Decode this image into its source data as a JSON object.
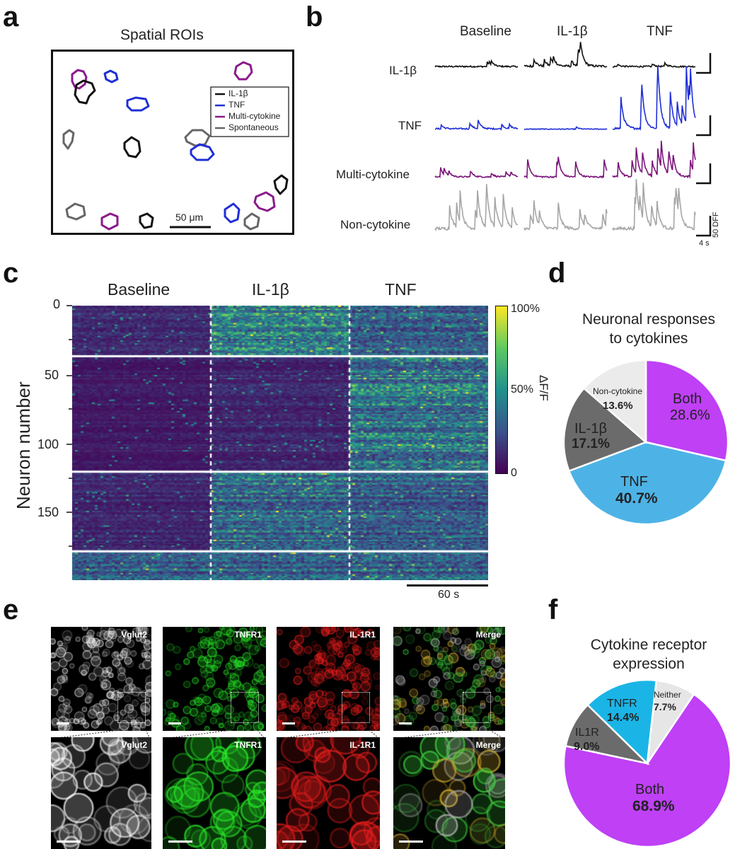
{
  "panels": {
    "a": "a",
    "b": "b",
    "c": "c",
    "d": "d",
    "e": "e",
    "f": "f"
  },
  "panel_a": {
    "title": "Spatial ROIs",
    "scalebar": "50 μm",
    "legend": [
      {
        "label": "IL-1β",
        "color": "#111111"
      },
      {
        "label": "TNF",
        "color": "#1f2fd6"
      },
      {
        "label": "Multi-cytokine",
        "color": "#8b1a8b"
      },
      {
        "label": "Spontaneous",
        "color": "#666666"
      }
    ]
  },
  "panel_b": {
    "col_headers": [
      "Baseline",
      "IL-1β",
      "TNF"
    ],
    "row_labels": [
      "IL-1β",
      "TNF",
      "Multi-cytokine",
      "Non-cytokine"
    ],
    "row_colors": [
      "#111111",
      "#1f2fd6",
      "#7a147a",
      "#a6a6a6"
    ],
    "scale_y": "50 DFF",
    "scale_x": "4 s"
  },
  "panel_c": {
    "col_headers": [
      "Baseline",
      "IL-1β",
      "TNF"
    ],
    "ylabel": "Neuron number",
    "yticks": [
      "0",
      "50",
      "100",
      "150"
    ],
    "colorbar_label": "ΔF/F",
    "colorbar_ticks": [
      "100%",
      "50%",
      "0"
    ],
    "scalebar": "60 s"
  },
  "panel_e": {
    "top_labels": [
      "Vglut2",
      "TNFR1",
      "IL-1R1",
      "Merge"
    ],
    "bottom_labels": [
      "Vglut2",
      "TNFR1",
      "IL-1R1",
      "Merge"
    ]
  },
  "chart_data": [
    {
      "type": "pie",
      "title": "Neuronal responses to cytokines",
      "slices": [
        {
          "label": "Both",
          "value": 28.6,
          "value_label": "28.6%",
          "color": "#bf40f5"
        },
        {
          "label": "TNF",
          "value": 40.7,
          "value_label": "40.7%",
          "color": "#4db3e6"
        },
        {
          "label": "IL-1β",
          "value": 17.1,
          "value_label": "17.1%",
          "color": "#6b6b6b"
        },
        {
          "label": "Non-cytokine",
          "value": 13.6,
          "value_label": "13.6%",
          "color": "#ebebeb"
        }
      ]
    },
    {
      "type": "pie",
      "title": "Cytokine receptor expression",
      "slices": [
        {
          "label": "Both",
          "value": 68.9,
          "value_label": "68.9%",
          "color": "#bf40f5"
        },
        {
          "label": "IL1R",
          "value": 9.0,
          "value_label": "9.0%",
          "color": "#6b6b6b"
        },
        {
          "label": "TNFR",
          "value": 14.4,
          "value_label": "14.4%",
          "color": "#1ab5e6"
        },
        {
          "label": "Neither",
          "value": 7.7,
          "value_label": "7.7%",
          "color": "#e6e6e6"
        }
      ]
    }
  ]
}
